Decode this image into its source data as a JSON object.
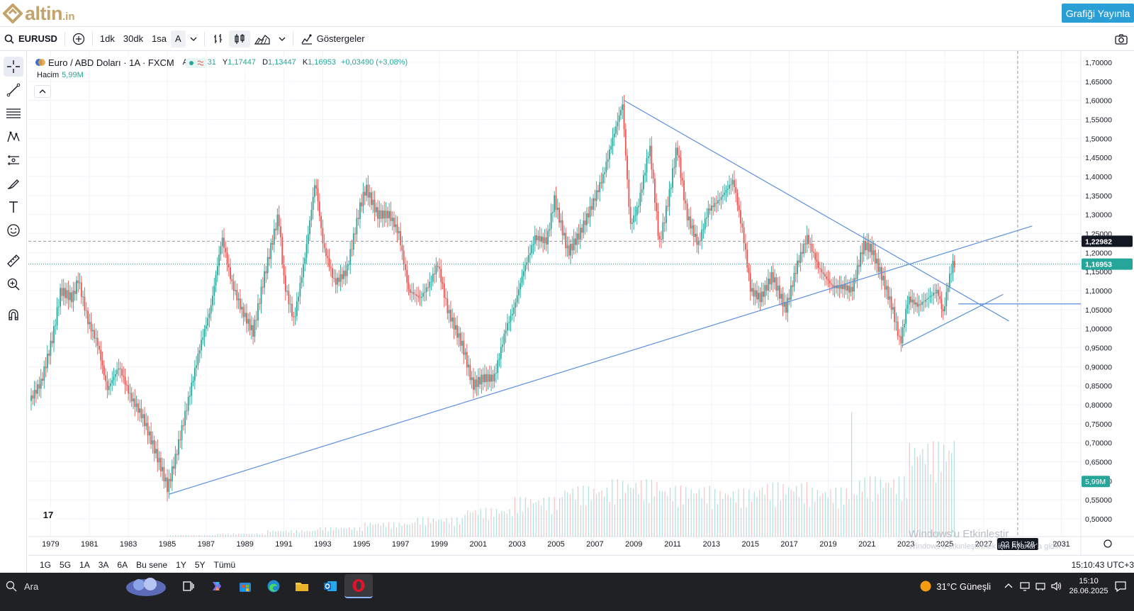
{
  "header": {
    "logo_text": "altin",
    "logo_tld": ".in",
    "publish_label": "Grafiği Yayınla"
  },
  "toolbar": {
    "symbol": "EURUSD",
    "intervals": [
      "1dk",
      "30dk",
      "1sa",
      "A"
    ],
    "indicators_label": "Göstergeler"
  },
  "legend": {
    "title": "Euro / ABD Doları · 1A · FXCM",
    "open_label": "A",
    "open": "1,13531",
    "high_label": "Y",
    "high": "1,17447",
    "low_label": "D",
    "low": "1,13447",
    "close_label": "K",
    "close": "1,16953",
    "change": "+0,03490 (+3,08%)",
    "volume_label": "Hacim",
    "volume": "5,99M"
  },
  "chart_data": {
    "type": "line",
    "title": "Euro / ABD Doları · 1A · FXCM",
    "xlabel": "",
    "ylabel": "",
    "xlim": [
      1978,
      2032
    ],
    "ylim": [
      0.45,
      1.72
    ],
    "x_ticks": [
      "1979",
      "1981",
      "1983",
      "1985",
      "1987",
      "1989",
      "1991",
      "1993",
      "1995",
      "1997",
      "1999",
      "2001",
      "2003",
      "2005",
      "2007",
      "2009",
      "2011",
      "2013",
      "2015",
      "2017",
      "2019",
      "2021",
      "2023",
      "2025",
      "2027",
      "2029",
      "2031"
    ],
    "y_ticks": [
      "1,70000",
      "1,65000",
      "1,60000",
      "1,55000",
      "1,50000",
      "1,45000",
      "1,40000",
      "1,35000",
      "1,30000",
      "1,25000",
      "1,20000",
      "1,15000",
      "1,10000",
      "1,05000",
      "1,00000",
      "0,95000",
      "0,90000",
      "0,85000",
      "0,80000",
      "0,75000",
      "0,70000",
      "0,65000",
      "0,60000",
      "0,55000",
      "0,50000"
    ],
    "series": [
      {
        "name": "EURUSD",
        "points": [
          [
            1978.0,
            0.81
          ],
          [
            1978.6,
            0.86
          ],
          [
            1979.2,
            0.98
          ],
          [
            1979.6,
            1.1
          ],
          [
            1980.2,
            1.08
          ],
          [
            1980.5,
            1.13
          ],
          [
            1981.0,
            1.02
          ],
          [
            1981.5,
            0.96
          ],
          [
            1982.0,
            0.84
          ],
          [
            1982.6,
            0.9
          ],
          [
            1983.2,
            0.82
          ],
          [
            1983.8,
            0.77
          ],
          [
            1984.3,
            0.7
          ],
          [
            1984.8,
            0.63
          ],
          [
            1985.1,
            0.58
          ],
          [
            1985.5,
            0.66
          ],
          [
            1986.2,
            0.82
          ],
          [
            1986.8,
            0.96
          ],
          [
            1987.3,
            1.05
          ],
          [
            1987.9,
            1.24
          ],
          [
            1988.4,
            1.12
          ],
          [
            1988.9,
            1.05
          ],
          [
            1989.5,
            0.99
          ],
          [
            1990.0,
            1.12
          ],
          [
            1990.8,
            1.3
          ],
          [
            1991.1,
            1.12
          ],
          [
            1991.6,
            1.02
          ],
          [
            1992.2,
            1.2
          ],
          [
            1992.7,
            1.39
          ],
          [
            1993.1,
            1.22
          ],
          [
            1993.7,
            1.12
          ],
          [
            1994.3,
            1.15
          ],
          [
            1995.0,
            1.32
          ],
          [
            1995.3,
            1.37
          ],
          [
            1995.9,
            1.3
          ],
          [
            1996.5,
            1.3
          ],
          [
            1997.0,
            1.25
          ],
          [
            1997.5,
            1.1
          ],
          [
            1998.1,
            1.08
          ],
          [
            1998.6,
            1.12
          ],
          [
            1999.0,
            1.17
          ],
          [
            1999.5,
            1.05
          ],
          [
            2000.3,
            0.95
          ],
          [
            2000.8,
            0.85
          ],
          [
            2001.3,
            0.87
          ],
          [
            2001.9,
            0.87
          ],
          [
            2002.5,
            1.0
          ],
          [
            2002.9,
            1.05
          ],
          [
            2003.4,
            1.15
          ],
          [
            2004.0,
            1.24
          ],
          [
            2004.6,
            1.23
          ],
          [
            2005.0,
            1.34
          ],
          [
            2005.7,
            1.2
          ],
          [
            2006.3,
            1.25
          ],
          [
            2006.9,
            1.32
          ],
          [
            2007.5,
            1.4
          ],
          [
            2008.0,
            1.5
          ],
          [
            2008.5,
            1.59
          ],
          [
            2008.9,
            1.27
          ],
          [
            2009.3,
            1.32
          ],
          [
            2009.9,
            1.48
          ],
          [
            2010.4,
            1.22
          ],
          [
            2010.9,
            1.35
          ],
          [
            2011.3,
            1.48
          ],
          [
            2011.8,
            1.3
          ],
          [
            2012.4,
            1.22
          ],
          [
            2012.9,
            1.31
          ],
          [
            2013.5,
            1.34
          ],
          [
            2014.2,
            1.39
          ],
          [
            2014.7,
            1.25
          ],
          [
            2015.1,
            1.1
          ],
          [
            2015.6,
            1.08
          ],
          [
            2016.2,
            1.14
          ],
          [
            2016.9,
            1.05
          ],
          [
            2017.5,
            1.17
          ],
          [
            2018.0,
            1.24
          ],
          [
            2018.6,
            1.16
          ],
          [
            2019.3,
            1.11
          ],
          [
            2019.9,
            1.11
          ],
          [
            2020.3,
            1.1
          ],
          [
            2020.9,
            1.22
          ],
          [
            2021.3,
            1.21
          ],
          [
            2021.9,
            1.13
          ],
          [
            2022.4,
            1.05
          ],
          [
            2022.8,
            0.96
          ],
          [
            2023.2,
            1.08
          ],
          [
            2023.7,
            1.06
          ],
          [
            2024.2,
            1.08
          ],
          [
            2024.7,
            1.1
          ],
          [
            2025.0,
            1.04
          ],
          [
            2025.3,
            1.13
          ],
          [
            2025.5,
            1.17
          ]
        ]
      }
    ],
    "volume_series": {
      "name": "Hacim",
      "values_millions": [
        0.1,
        0.2,
        0.4,
        0.6,
        0.9,
        1.2,
        1.8,
        2.5,
        3.2,
        3.6,
        3.2,
        3.0,
        3.4,
        3.1,
        3.8,
        5.99
      ]
    },
    "trendlines": [
      {
        "from": [
          1985.1,
          0.565
        ],
        "to": [
          2029.5,
          1.27
        ]
      },
      {
        "from": [
          2008.5,
          1.6
        ],
        "to": [
          2028.3,
          1.02
        ]
      },
      {
        "from": [
          2022.8,
          0.955
        ],
        "to": [
          2028.0,
          1.09
        ]
      },
      {
        "from": [
          2025.7,
          1.065
        ],
        "to": [
          2032.0,
          1.065
        ]
      }
    ],
    "horizontal_levels": [
      1.22982,
      1.16953
    ],
    "price_labels": [
      "1,22982",
      "1,16953"
    ],
    "volume_label": "5,99M",
    "crosshair_date_label": "02 Eki '28",
    "grid": true
  },
  "range_bar": {
    "ranges": [
      "1G",
      "5G",
      "1A",
      "3A",
      "6A",
      "Bu sene",
      "1Y",
      "5Y",
      "Tümü"
    ],
    "clock": "15:10:43 UTC+3"
  },
  "watermark": {
    "line1": "Windows'u Etkinleştir",
    "line2": "Windows'u etkinleştirmek için Ayarlar'a gidin."
  },
  "taskbar": {
    "search_placeholder": "Ara",
    "weather": "31°C  Güneşli",
    "time": "15:10",
    "date": "26.06.2025"
  },
  "colors": {
    "up": "#26a69a",
    "down": "#ef5350",
    "trendline": "#5b8fe0",
    "accent": "#2a9fd6",
    "logo": "#c2a36a"
  }
}
